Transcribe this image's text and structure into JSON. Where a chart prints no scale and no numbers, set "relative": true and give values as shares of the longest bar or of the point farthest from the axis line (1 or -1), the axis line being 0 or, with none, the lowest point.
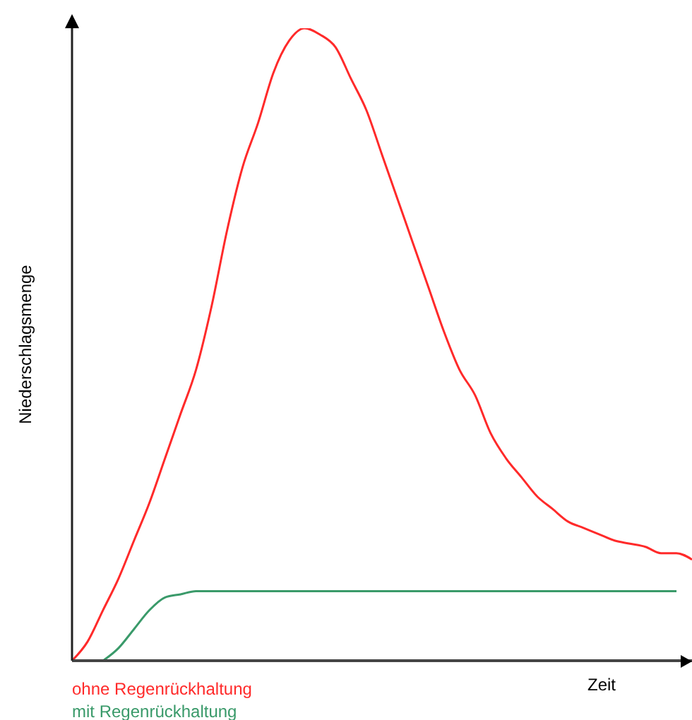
{
  "chart_data": {
    "type": "line",
    "relative": true,
    "xlabel": "Zeit",
    "ylabel": "Niederschlagsmenge",
    "legend": "bottom left",
    "marker": "none",
    "categories": [
      null,
      null,
      null,
      null,
      null,
      null,
      null,
      null,
      null,
      null,
      null,
      null,
      null,
      null,
      null,
      null,
      null,
      null,
      null,
      null,
      null,
      null,
      null,
      null,
      null,
      null,
      null,
      null,
      null,
      null,
      null,
      null,
      null,
      null,
      null,
      null,
      null,
      null,
      null,
      null,
      null
    ],
    "series": [
      {
        "name": "ohne Regenrückhaltung",
        "color": "#ff2a2a",
        "values": [
          0,
          0.03,
          0.08,
          0.13,
          0.19,
          0.25,
          0.32,
          0.39,
          0.46,
          0.56,
          0.68,
          0.78,
          0.85,
          0.93,
          0.98,
          1,
          0.99,
          0.97,
          0.92,
          0.87,
          0.8,
          0.73,
          0.66,
          0.59,
          0.52,
          0.46,
          0.42,
          0.36,
          0.32,
          0.29,
          0.26,
          0.24,
          0.22,
          0.21,
          0.2,
          0.19,
          0.185,
          0.18,
          0.17,
          0.17,
          0.16
        ]
      },
      {
        "name": "mit Regenrückhaltung",
        "color": "#3a9a6a",
        "values": [
          null,
          null,
          0,
          0.02,
          0.05,
          0.08,
          0.1,
          0.105,
          0.11,
          0.11,
          0.11,
          0.11,
          0.11,
          0.11,
          0.11,
          0.11,
          0.11,
          0.11,
          0.11,
          0.11,
          0.11,
          0.11,
          0.11,
          0.11,
          0.11,
          0.11,
          0.11,
          0.11,
          0.11,
          0.11,
          0.11,
          0.11,
          0.11,
          0.11,
          0.11,
          0.11,
          0.11,
          0.11,
          0.11,
          0.11,
          null
        ]
      }
    ]
  }
}
